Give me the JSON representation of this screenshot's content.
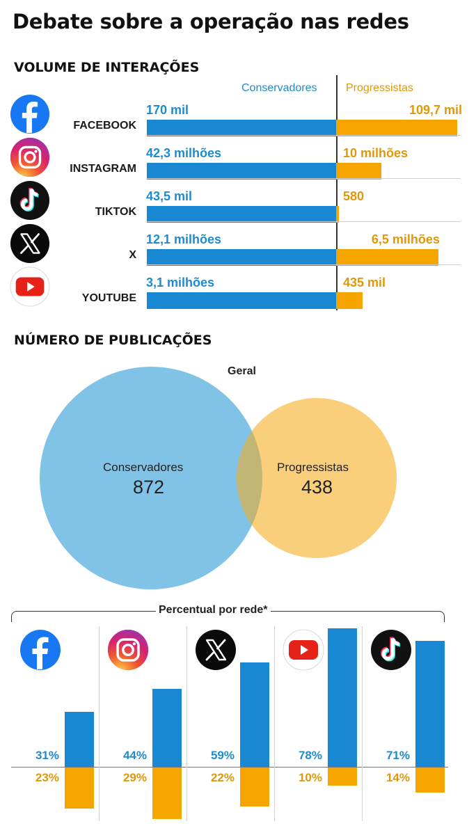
{
  "title": "Debate sobre a operação nas redes",
  "colors": {
    "conservadores": "#1788d1",
    "progressistas": "#f5a400",
    "venn_cons": "#80c3e6",
    "venn_prog": "#f9cf7c"
  },
  "sections": {
    "interactions_title": "VOLUME DE INTERAÇÕES",
    "publications_title": "NÚMERO DE PUBLICAÇÕES"
  },
  "chart_data": [
    {
      "type": "bar",
      "orientation": "horizontal-diverging",
      "title": "VOLUME DE INTERAÇÕES",
      "series_names": [
        "Conservadores",
        "Progressistas"
      ],
      "rows": [
        {
          "network": "FACEBOOK",
          "icon": "facebook-icon",
          "cons_label": "170 mil",
          "prog_label": "109,7 mil",
          "cons_value": 170000,
          "prog_value": 109700,
          "cons_fill": 1.0,
          "prog_fill": 0.64
        },
        {
          "network": "INSTAGRAM",
          "icon": "instagram-icon",
          "cons_label": "42,3 milhões",
          "prog_label": "10 milhões",
          "cons_value": 42300000,
          "prog_value": 10000000,
          "cons_fill": 1.0,
          "prog_fill": 0.24
        },
        {
          "network": "TIKTOK",
          "icon": "tiktok-icon",
          "cons_label": "43,5 mil",
          "prog_label": "580",
          "cons_value": 43500,
          "prog_value": 580,
          "cons_fill": 1.0,
          "prog_fill": 0.013
        },
        {
          "network": "X",
          "icon": "x-icon",
          "cons_label": "12,1 milhões",
          "prog_label": "6,5 milhões",
          "cons_value": 12100000,
          "prog_value": 6500000,
          "cons_fill": 1.0,
          "prog_fill": 0.54
        },
        {
          "network": "YOUTUBE",
          "icon": "youtube-icon",
          "cons_label": "3,1 milhões",
          "prog_label": "435 mil",
          "cons_value": 3100000,
          "prog_value": 435000,
          "cons_fill": 1.0,
          "prog_fill": 0.14
        }
      ]
    },
    {
      "type": "venn",
      "title": "Geral",
      "sets": [
        {
          "name": "Conservadores",
          "value": 872
        },
        {
          "name": "Progressistas",
          "value": 438
        }
      ]
    },
    {
      "type": "bar",
      "orientation": "vertical-diverging",
      "title": "Percentual por rede*",
      "series_names": [
        "Conservadores",
        "Progressistas"
      ],
      "columns": [
        {
          "icon": "facebook-icon",
          "cons": 31,
          "prog": 23,
          "cons_label": "31%",
          "prog_label": "23%"
        },
        {
          "icon": "instagram-icon",
          "cons": 44,
          "prog": 29,
          "cons_label": "44%",
          "prog_label": "29%"
        },
        {
          "icon": "x-icon",
          "cons": 59,
          "prog": 22,
          "cons_label": "59%",
          "prog_label": "22%"
        },
        {
          "icon": "youtube-icon",
          "cons": 78,
          "prog": 10,
          "cons_label": "78%",
          "prog_label": "10%"
        },
        {
          "icon": "tiktok-icon",
          "cons": 71,
          "prog": 14,
          "cons_label": "71%",
          "prog_label": "14%"
        }
      ]
    }
  ]
}
